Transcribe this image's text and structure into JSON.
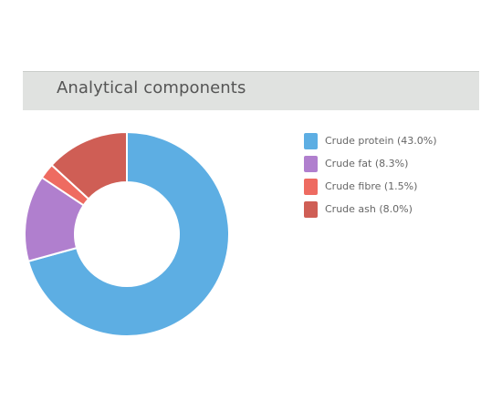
{
  "header": {
    "title": "Analytical components"
  },
  "chart_data": {
    "type": "pie",
    "variant": "donut",
    "categories": [
      "Crude protein",
      "Crude fat",
      "Crude fibre",
      "Crude ash"
    ],
    "values": [
      43.0,
      8.3,
      1.5,
      8.0
    ],
    "unit": "%",
    "colors": [
      "#5daee3",
      "#b07fce",
      "#ee6b61",
      "#cf5e55"
    ],
    "legend": {
      "placement": "right",
      "labels": [
        "Crude protein (43.0%)",
        "Crude fat (8.3%)",
        "Crude fibre (1.5%)",
        "Crude ash (8.0%)"
      ]
    }
  }
}
